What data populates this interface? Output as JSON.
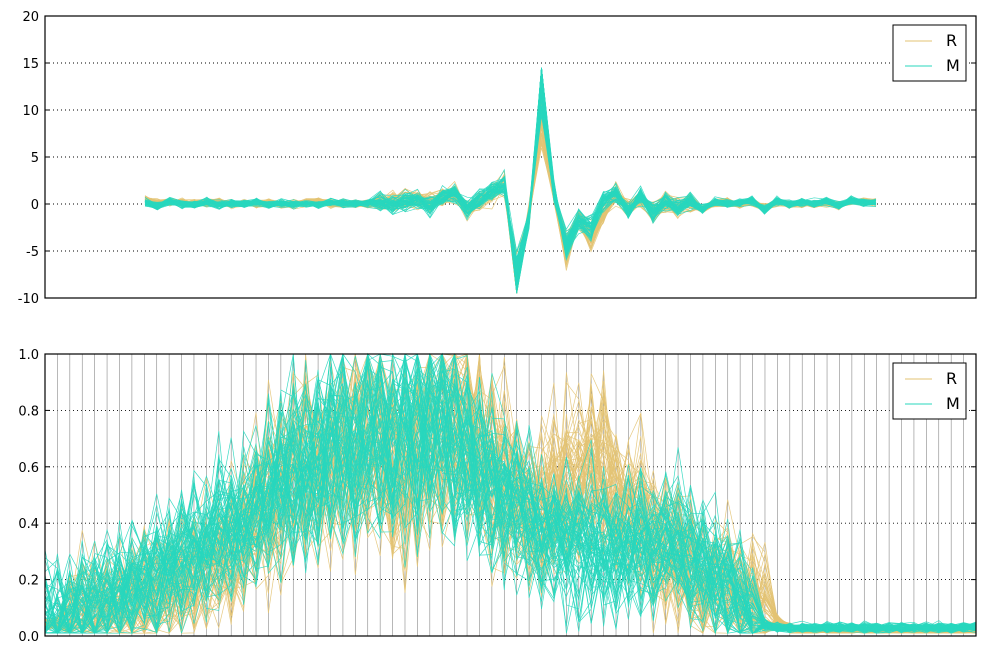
{
  "chart_data": [
    {
      "type": "line",
      "title": "",
      "xlabel": "",
      "ylabel": "",
      "ylim": [
        -10,
        20
      ],
      "yticks": [
        -10,
        -5,
        0,
        5,
        10,
        15,
        20
      ],
      "n_points": 60,
      "grid": "horizontal dotted",
      "legend_position": "top-right",
      "series": [
        {
          "name": "R",
          "color": "#e3c373",
          "style": "many thin overlapping lines",
          "template_values": [
            0.4,
            0.1,
            0.2,
            0.2,
            0.0,
            0.1,
            0.2,
            0.0,
            0.1,
            0.0,
            0.1,
            0.0,
            0.0,
            0.1,
            0.2,
            0.0,
            0.0,
            0.1,
            0.0,
            0.2,
            0.3,
            0.4,
            0.5,
            0.2,
            0.7,
            1.0,
            -0.6,
            0.2,
            1.0,
            2.0,
            -8.5,
            -1.0,
            9.0,
            1.0,
            -5.0,
            -1.5,
            -3.5,
            -1.0,
            1.0,
            -0.5,
            0.5,
            -0.8,
            0.2,
            -0.3,
            0.3,
            -0.5,
            0.1,
            0.2,
            0.0,
            0.3,
            -0.5,
            0.2,
            -0.1,
            0.1,
            0.0,
            0.1,
            -0.2,
            0.3,
            0.2,
            0.2
          ]
        },
        {
          "name": "M",
          "color": "#28d7be",
          "style": "many thin overlapping lines",
          "template_values": [
            0.2,
            -0.2,
            0.3,
            0.0,
            -0.1,
            0.2,
            -0.1,
            0.1,
            0.0,
            0.2,
            -0.1,
            0.1,
            0.0,
            0.1,
            -0.1,
            0.2,
            0.1,
            0.0,
            0.1,
            0.2,
            -0.2,
            0.3,
            0.5,
            -0.3,
            0.8,
            1.2,
            -0.5,
            0.4,
            1.3,
            2.2,
            -7.5,
            -1.5,
            13.5,
            1.5,
            -4.5,
            -1.8,
            -2.5,
            0.5,
            1.2,
            -0.8,
            0.8,
            -1.0,
            0.4,
            -0.5,
            0.5,
            -0.6,
            0.3,
            0.0,
            0.2,
            0.4,
            -0.6,
            0.3,
            0.0,
            0.2,
            0.1,
            0.3,
            -0.2,
            0.4,
            0.2,
            0.1
          ]
        }
      ]
    },
    {
      "type": "line",
      "title": "",
      "xlabel": "",
      "ylabel": "",
      "ylim": [
        0,
        1.0
      ],
      "yticks": [
        "0.0",
        "0.2",
        "0.4",
        "0.6",
        "0.8",
        "1.0"
      ],
      "n_points": 76,
      "grid": "horizontal dotted + vertical solid",
      "legend_position": "top-right",
      "series": [
        {
          "name": "R",
          "color": "#e3c373",
          "style": "many thin overlapping lines",
          "template_values": [
            0.04,
            0.05,
            0.06,
            0.07,
            0.08,
            0.09,
            0.1,
            0.12,
            0.14,
            0.16,
            0.18,
            0.2,
            0.22,
            0.25,
            0.28,
            0.3,
            0.35,
            0.42,
            0.5,
            0.55,
            0.6,
            0.62,
            0.58,
            0.6,
            0.65,
            0.7,
            0.68,
            0.65,
            0.62,
            0.6,
            0.65,
            0.7,
            0.72,
            0.75,
            0.7,
            0.65,
            0.6,
            0.55,
            0.5,
            0.45,
            0.45,
            0.5,
            0.52,
            0.55,
            0.6,
            0.58,
            0.5,
            0.45,
            0.4,
            0.35,
            0.3,
            0.28,
            0.25,
            0.22,
            0.2,
            0.18,
            0.15,
            0.12,
            0.08,
            0.05,
            0.03,
            0.02,
            0.02,
            0.02,
            0.02,
            0.02,
            0.02,
            0.02,
            0.02,
            0.02,
            0.02,
            0.02,
            0.02,
            0.02,
            0.02,
            0.02
          ]
        },
        {
          "name": "M",
          "color": "#28d7be",
          "style": "many thin overlapping lines",
          "template_values": [
            0.06,
            0.07,
            0.08,
            0.1,
            0.12,
            0.13,
            0.15,
            0.18,
            0.2,
            0.22,
            0.25,
            0.28,
            0.3,
            0.32,
            0.35,
            0.38,
            0.4,
            0.45,
            0.5,
            0.55,
            0.58,
            0.6,
            0.62,
            0.65,
            0.68,
            0.7,
            0.72,
            0.7,
            0.68,
            0.7,
            0.72,
            0.74,
            0.75,
            0.7,
            0.65,
            0.6,
            0.55,
            0.5,
            0.45,
            0.4,
            0.38,
            0.36,
            0.35,
            0.34,
            0.33,
            0.32,
            0.3,
            0.32,
            0.34,
            0.35,
            0.33,
            0.3,
            0.28,
            0.25,
            0.22,
            0.18,
            0.12,
            0.06,
            0.04,
            0.03,
            0.03,
            0.03,
            0.03,
            0.03,
            0.03,
            0.03,
            0.03,
            0.03,
            0.03,
            0.03,
            0.03,
            0.03,
            0.03,
            0.03,
            0.03,
            0.03
          ]
        }
      ]
    }
  ]
}
